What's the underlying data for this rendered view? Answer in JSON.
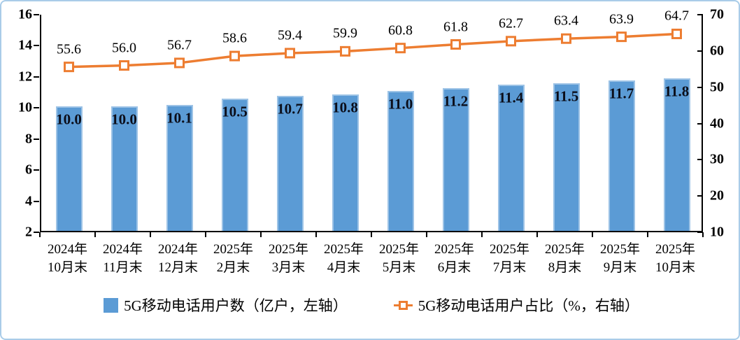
{
  "chart_data": {
    "type": "bar+line",
    "categories": [
      "2024年\n10月末",
      "2024年\n11月末",
      "2024年\n12月末",
      "2025年\n2月末",
      "2025年\n3月末",
      "2025年\n4月末",
      "2025年\n5月末",
      "2025年\n6月末",
      "2025年\n7月末",
      "2025年\n8月末",
      "2025年\n9月末",
      "2025年\n10月末"
    ],
    "series": [
      {
        "name": "5G移动电话用户数（亿户，左轴）",
        "type": "bar",
        "axis": "left",
        "color": "#5b9bd5",
        "values": [
          10.0,
          10.0,
          10.1,
          10.5,
          10.7,
          10.8,
          11.0,
          11.2,
          11.4,
          11.5,
          11.7,
          11.8
        ]
      },
      {
        "name": "5G移动电话用户占比（%，右轴）",
        "type": "line",
        "axis": "right",
        "color": "#ed7d31",
        "values": [
          55.6,
          56.0,
          56.7,
          58.6,
          59.4,
          59.9,
          60.8,
          61.8,
          62.7,
          63.4,
          63.9,
          64.7
        ]
      }
    ],
    "left_axis": {
      "min": 2,
      "max": 16,
      "ticks": [
        16,
        14,
        12,
        10,
        8,
        6,
        4,
        2
      ]
    },
    "right_axis": {
      "min": 10,
      "max": 70,
      "ticks": [
        70,
        60,
        50,
        40,
        30,
        20,
        10
      ]
    },
    "grid": false,
    "legend_position": "bottom",
    "colors": {
      "bar_fill": "#5b9bd5",
      "bar_edge": "#9dc3e6",
      "line": "#ed7d31",
      "marker_fill": "#ffffff",
      "axis": "#000000",
      "frame_border": "#a9cce8"
    }
  }
}
